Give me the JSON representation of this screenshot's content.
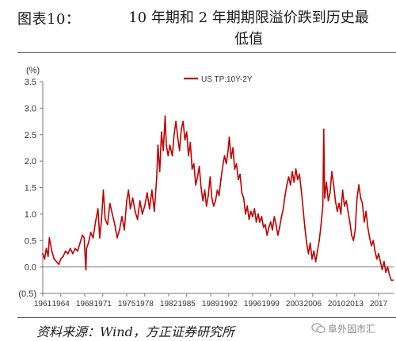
{
  "figure": {
    "number": "图表10：",
    "title_line1": "10 年期和 2 年期期限溢价跌到历史最",
    "title_line2": "低值",
    "source": "资料来源：Wind，方正证券研究所",
    "watermark": "阜外固市汇"
  },
  "chart_data": {
    "type": "line",
    "ylabel": "(%)",
    "ylim": [
      -0.5,
      3.5
    ],
    "xlim": [
      1961,
      2019.5
    ],
    "yticks": [
      3.5,
      3.0,
      2.5,
      2.0,
      1.5,
      1.0,
      0.5,
      0.0,
      -0.5
    ],
    "ytick_labels": [
      "3.5",
      "3.0",
      "2.5",
      "2.0",
      "1.5",
      "1.0",
      "0.5",
      "0.0",
      "(0.5)"
    ],
    "xticks": [
      1961,
      1964,
      1968,
      1971,
      1975,
      1978,
      1982,
      1985,
      1989,
      1992,
      1996,
      1999,
      2003,
      2006,
      2010,
      2013,
      2017
    ],
    "xtick_labels": [
      "1961",
      "1964",
      "1968",
      "1971",
      "1975",
      "1978",
      "1982",
      "1985",
      "1989",
      "1992",
      "1996",
      "1999",
      "2003",
      "2006",
      "2010",
      "2013",
      "2017"
    ],
    "grid": false,
    "legend_position": "top-center",
    "series": [
      {
        "name": "US TP:10Y-2Y",
        "color": "#c00000",
        "points": [
          [
            1961.0,
            0.25
          ],
          [
            1961.3,
            0.15
          ],
          [
            1961.6,
            0.35
          ],
          [
            1961.9,
            0.2
          ],
          [
            1962.1,
            0.55
          ],
          [
            1962.5,
            0.3
          ],
          [
            1962.9,
            0.15
          ],
          [
            1963.3,
            0.1
          ],
          [
            1963.7,
            0.05
          ],
          [
            1964.0,
            0.15
          ],
          [
            1964.4,
            0.2
          ],
          [
            1964.8,
            0.3
          ],
          [
            1965.2,
            0.25
          ],
          [
            1965.6,
            0.35
          ],
          [
            1966.0,
            0.25
          ],
          [
            1966.4,
            0.35
          ],
          [
            1966.8,
            0.3
          ],
          [
            1967.2,
            0.45
          ],
          [
            1967.6,
            0.6
          ],
          [
            1967.9,
            0.55
          ],
          [
            1968.1,
            0.1
          ],
          [
            1968.2,
            -0.05
          ],
          [
            1968.3,
            0.35
          ],
          [
            1968.6,
            0.45
          ],
          [
            1969.0,
            0.65
          ],
          [
            1969.4,
            0.55
          ],
          [
            1969.8,
            0.85
          ],
          [
            1970.2,
            1.1
          ],
          [
            1970.5,
            0.55
          ],
          [
            1970.8,
            0.9
          ],
          [
            1971.1,
            1.45
          ],
          [
            1971.4,
            0.9
          ],
          [
            1971.8,
            0.8
          ],
          [
            1972.2,
            1.2
          ],
          [
            1972.6,
            1.0
          ],
          [
            1973.0,
            0.8
          ],
          [
            1973.4,
            0.55
          ],
          [
            1973.8,
            0.7
          ],
          [
            1974.2,
            0.95
          ],
          [
            1974.6,
            0.7
          ],
          [
            1975.0,
            1.25
          ],
          [
            1975.3,
            1.45
          ],
          [
            1975.6,
            1.1
          ],
          [
            1976.0,
            1.3
          ],
          [
            1976.4,
            1.05
          ],
          [
            1976.8,
            0.9
          ],
          [
            1977.2,
            1.25
          ],
          [
            1977.6,
            1.0
          ],
          [
            1978.0,
            1.15
          ],
          [
            1978.4,
            1.4
          ],
          [
            1978.8,
            1.1
          ],
          [
            1979.2,
            1.45
          ],
          [
            1979.6,
            1.05
          ],
          [
            1980.0,
            1.7
          ],
          [
            1980.2,
            2.3
          ],
          [
            1980.5,
            1.8
          ],
          [
            1980.8,
            2.55
          ],
          [
            1981.1,
            2.2
          ],
          [
            1981.4,
            2.85
          ],
          [
            1981.6,
            2.3
          ],
          [
            1981.9,
            2.1
          ],
          [
            1982.2,
            2.3
          ],
          [
            1982.6,
            2.1
          ],
          [
            1982.9,
            2.5
          ],
          [
            1983.2,
            2.75
          ],
          [
            1983.5,
            2.45
          ],
          [
            1983.8,
            2.2
          ],
          [
            1984.1,
            2.6
          ],
          [
            1984.4,
            2.75
          ],
          [
            1984.7,
            2.4
          ],
          [
            1985.0,
            2.55
          ],
          [
            1985.3,
            2.1
          ],
          [
            1985.6,
            2.35
          ],
          [
            1985.9,
            1.85
          ],
          [
            1986.2,
            1.95
          ],
          [
            1986.5,
            1.55
          ],
          [
            1986.8,
            1.7
          ],
          [
            1987.1,
            1.9
          ],
          [
            1987.4,
            1.5
          ],
          [
            1987.7,
            1.25
          ],
          [
            1988.0,
            1.45
          ],
          [
            1988.3,
            1.15
          ],
          [
            1988.6,
            1.35
          ],
          [
            1988.9,
            1.7
          ],
          [
            1989.2,
            1.3
          ],
          [
            1989.5,
            1.15
          ],
          [
            1989.8,
            1.25
          ],
          [
            1990.1,
            1.45
          ],
          [
            1990.4,
            1.35
          ],
          [
            1990.7,
            1.65
          ],
          [
            1991.0,
            1.9
          ],
          [
            1991.3,
            2.1
          ],
          [
            1991.6,
            1.95
          ],
          [
            1991.9,
            2.2
          ],
          [
            1992.1,
            2.45
          ],
          [
            1992.4,
            2.05
          ],
          [
            1992.7,
            2.25
          ],
          [
            1993.0,
            1.85
          ],
          [
            1993.3,
            1.95
          ],
          [
            1993.6,
            1.65
          ],
          [
            1993.9,
            1.75
          ],
          [
            1994.2,
            1.4
          ],
          [
            1994.5,
            1.3
          ],
          [
            1994.8,
            1.0
          ],
          [
            1995.1,
            1.15
          ],
          [
            1995.4,
            0.9
          ],
          [
            1995.7,
            1.05
          ],
          [
            1996.0,
            0.95
          ],
          [
            1996.3,
            1.1
          ],
          [
            1996.6,
            0.85
          ],
          [
            1996.9,
            1.0
          ],
          [
            1997.2,
            0.85
          ],
          [
            1997.5,
            0.95
          ],
          [
            1997.8,
            0.75
          ],
          [
            1998.1,
            0.8
          ],
          [
            1998.4,
            0.6
          ],
          [
            1998.7,
            0.75
          ],
          [
            1999.0,
            0.85
          ],
          [
            1999.3,
            0.7
          ],
          [
            1999.6,
            0.95
          ],
          [
            1999.9,
            0.8
          ],
          [
            2000.2,
            0.6
          ],
          [
            2000.5,
            0.75
          ],
          [
            2000.8,
            0.95
          ],
          [
            2001.1,
            1.1
          ],
          [
            2001.4,
            1.35
          ],
          [
            2001.7,
            1.55
          ],
          [
            2002.0,
            1.7
          ],
          [
            2002.3,
            1.55
          ],
          [
            2002.6,
            1.8
          ],
          [
            2002.9,
            1.6
          ],
          [
            2003.2,
            1.85
          ],
          [
            2003.5,
            1.65
          ],
          [
            2003.8,
            1.75
          ],
          [
            2004.1,
            1.45
          ],
          [
            2004.4,
            1.1
          ],
          [
            2004.7,
            0.75
          ],
          [
            2005.0,
            0.45
          ],
          [
            2005.3,
            0.25
          ],
          [
            2005.6,
            0.45
          ],
          [
            2005.9,
            0.15
          ],
          [
            2006.2,
            0.3
          ],
          [
            2006.5,
            0.1
          ],
          [
            2006.8,
            0.3
          ],
          [
            2007.1,
            0.5
          ],
          [
            2007.4,
            0.8
          ],
          [
            2007.7,
            1.15
          ],
          [
            2007.85,
            2.6
          ],
          [
            2008.0,
            1.3
          ],
          [
            2008.3,
            1.6
          ],
          [
            2008.6,
            1.25
          ],
          [
            2008.9,
            1.4
          ],
          [
            2009.2,
            1.8
          ],
          [
            2009.5,
            1.55
          ],
          [
            2009.8,
            1.25
          ],
          [
            2010.1,
            1.05
          ],
          [
            2010.4,
            1.2
          ],
          [
            2010.7,
            1.0
          ],
          [
            2011.0,
            1.45
          ],
          [
            2011.3,
            1.15
          ],
          [
            2011.6,
            1.25
          ],
          [
            2011.9,
            1.05
          ],
          [
            2012.2,
            0.85
          ],
          [
            2012.5,
            0.6
          ],
          [
            2012.8,
            0.5
          ],
          [
            2013.1,
            0.7
          ],
          [
            2013.4,
            1.3
          ],
          [
            2013.7,
            1.55
          ],
          [
            2014.0,
            1.3
          ],
          [
            2014.3,
            1.2
          ],
          [
            2014.6,
            0.85
          ],
          [
            2014.9,
            1.05
          ],
          [
            2015.2,
            0.75
          ],
          [
            2015.5,
            0.55
          ],
          [
            2015.8,
            0.4
          ],
          [
            2016.1,
            0.5
          ],
          [
            2016.4,
            0.3
          ],
          [
            2016.7,
            0.15
          ],
          [
            2017.0,
            0.25
          ],
          [
            2017.3,
            0.1
          ],
          [
            2017.6,
            -0.05
          ],
          [
            2017.9,
            0.1
          ],
          [
            2018.2,
            -0.1
          ],
          [
            2018.5,
            0.0
          ],
          [
            2018.8,
            -0.15
          ],
          [
            2019.1,
            -0.25
          ],
          [
            2019.4,
            -0.25
          ]
        ]
      }
    ]
  }
}
